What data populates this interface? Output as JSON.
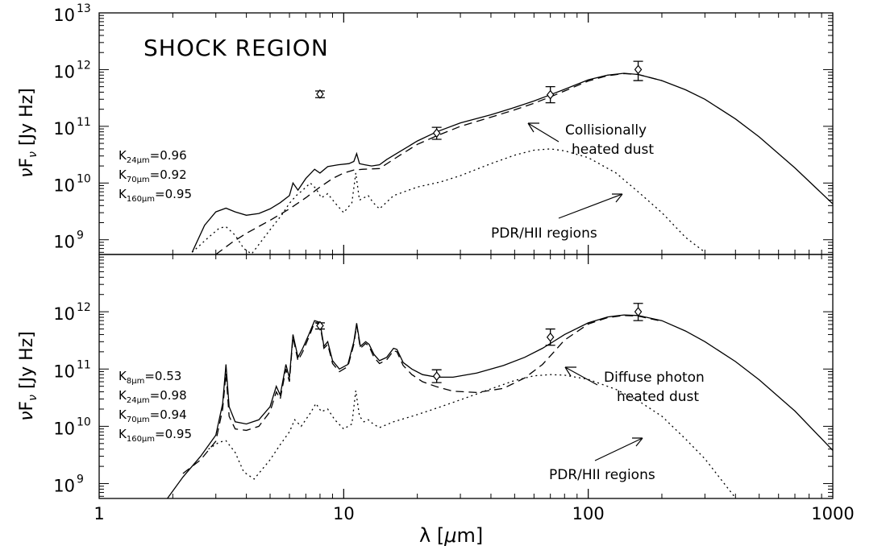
{
  "chart_data": [
    {
      "type": "line",
      "panel": "top",
      "title": "SHOCK REGION",
      "xlabel": "",
      "ylabel": "νF_ν [Jy Hz]",
      "xscale": "log",
      "yscale": "log",
      "xlim": [
        1,
        1000
      ],
      "ylim": [
        550000000.0,
        10000000000000.0
      ],
      "y_tick_labels": [
        {
          "label": "10",
          "exp": "13",
          "value": 10000000000000.0
        },
        {
          "label": "10",
          "exp": "12",
          "value": 1000000000000.0
        },
        {
          "label": "10",
          "exp": "11",
          "value": 100000000000.0
        },
        {
          "label": "10",
          "exp": "10",
          "value": 10000000000.0
        },
        {
          "label": "10",
          "exp": "9",
          "value": 1000000000.0
        }
      ],
      "k_factors": [
        {
          "sub": "24μm",
          "value": "0.96"
        },
        {
          "sub": "70μm",
          "value": "0.92"
        },
        {
          "sub": "160μm",
          "value": "0.95"
        }
      ],
      "annotations": [
        {
          "lines": [
            "Collisionally",
            "heated dust"
          ]
        },
        {
          "lines": [
            "PDR/HII regions"
          ]
        }
      ],
      "observed_points": [
        {
          "x": 8.0,
          "y": 370000000000.0,
          "yerr_low": 320000000000.0,
          "yerr_high": 420000000000.0
        },
        {
          "x": 24,
          "y": 76000000000.0,
          "yerr_low": 59000000000.0,
          "yerr_high": 96000000000.0
        },
        {
          "x": 70,
          "y": 360000000000.0,
          "yerr_low": 260000000000.0,
          "yerr_high": 500000000000.0
        },
        {
          "x": 160,
          "y": 1000000000000.0,
          "yerr_low": 640000000000.0,
          "yerr_high": 1400000000000.0
        }
      ],
      "series": [
        {
          "style": "solid",
          "x": [
            2.4,
            2.7,
            3.0,
            3.3,
            3.6,
            4.0,
            4.5,
            5.0,
            5.5,
            6.0,
            6.2,
            6.5,
            7.0,
            7.6,
            8.0,
            8.6,
            9.5,
            10.5,
            11.0,
            11.3,
            11.6,
            12.2,
            13.0,
            14.0,
            15.0,
            17.0,
            20,
            24,
            30,
            40,
            50,
            60,
            70,
            80,
            100,
            120,
            140,
            160,
            200,
            250,
            300,
            400,
            500,
            700,
            1000
          ],
          "y": [
            600000000.0,
            1800000000.0,
            3100000000.0,
            3600000000.0,
            3100000000.0,
            2700000000.0,
            2900000000.0,
            3500000000.0,
            4500000000.0,
            6000000000.0,
            10000000000.0,
            7500000000.0,
            12000000000.0,
            17500000000.0,
            15000000000.0,
            19500000000.0,
            21000000000.0,
            22000000000.0,
            24000000000.0,
            33000000000.0,
            22000000000.0,
            21000000000.0,
            20000000000.0,
            21000000000.0,
            26000000000.0,
            36000000000.0,
            55000000000.0,
            80000000000.0,
            115000000000.0,
            160000000000.0,
            215000000000.0,
            280000000000.0,
            360000000000.0,
            450000000000.0,
            660000000000.0,
            800000000000.0,
            860000000000.0,
            820000000000.0,
            640000000000.0,
            440000000000.0,
            300000000000.0,
            135000000000.0,
            65000000000.0,
            18500000000.0,
            4300000000.0
          ]
        },
        {
          "style": "dashed",
          "x": [
            3.0,
            3.5,
            4.0,
            5.0,
            6.0,
            7.0,
            8.0,
            9.0,
            10.0,
            11.0,
            12.0,
            14.0,
            17,
            20,
            24,
            30,
            40,
            50,
            60,
            70,
            80,
            100,
            120,
            140,
            160,
            200
          ],
          "y": [
            550000000.0,
            900000000.0,
            1300000000.0,
            2200000000.0,
            3500000000.0,
            5500000000.0,
            8500000000.0,
            12000000000.0,
            15000000000.0,
            17000000000.0,
            17500000000.0,
            18000000000.0,
            31000000000.0,
            48000000000.0,
            68000000000.0,
            100000000000.0,
            145000000000.0,
            195000000000.0,
            255000000000.0,
            330000000000.0,
            420000000000.0,
            630000000000.0,
            780000000000.0,
            850000000000.0,
            820000000000.0,
            640000000000.0
          ]
        },
        {
          "style": "dotted",
          "x": [
            2.4,
            2.8,
            3.1,
            3.3,
            3.6,
            3.9,
            4.2,
            5.0,
            5.6,
            6.0,
            6.4,
            6.8,
            7.3,
            7.7,
            8.1,
            8.6,
            9.2,
            10.0,
            10.8,
            11.2,
            11.6,
            12.1,
            12.6,
            13.2,
            14.0,
            16,
            20,
            25,
            30,
            40,
            50,
            60,
            70,
            80,
            100,
            130,
            160,
            200,
            250,
            300
          ],
          "y": [
            600000000.0,
            1100000000.0,
            1600000000.0,
            1700000000.0,
            1200000000.0,
            700000000.0,
            560000000.0,
            1500000000.0,
            2800000000.0,
            4400000000.0,
            6000000000.0,
            7500000000.0,
            10000000000.0,
            8000000000.0,
            5500000000.0,
            6500000000.0,
            4500000000.0,
            3000000000.0,
            4500000000.0,
            15000000000.0,
            5000000000.0,
            5500000000.0,
            6000000000.0,
            4500000000.0,
            3500000000.0,
            6000000000.0,
            8500000000.0,
            10500000000.0,
            13500000000.0,
            22000000000.0,
            31000000000.0,
            38000000000.0,
            40000000000.0,
            37000000000.0,
            28000000000.0,
            15000000000.0,
            7000000000.0,
            3000000000.0,
            1100000000.0,
            600000000.0
          ]
        }
      ]
    },
    {
      "type": "line",
      "panel": "bottom",
      "title": "",
      "xlabel": "λ [μm]",
      "ylabel": "νF_ν [Jy Hz]",
      "xscale": "log",
      "yscale": "log",
      "xlim": [
        1,
        1000
      ],
      "ylim": [
        550000000.0,
        10000000000000.0
      ],
      "x_tick_labels": [
        {
          "label": "1",
          "value": 1
        },
        {
          "label": "10",
          "value": 10
        },
        {
          "label": "100",
          "value": 100
        },
        {
          "label": "1000",
          "value": 1000
        }
      ],
      "y_tick_labels": [
        {
          "label": "10",
          "exp": "12",
          "value": 1000000000000.0
        },
        {
          "label": "10",
          "exp": "11",
          "value": 100000000000.0
        },
        {
          "label": "10",
          "exp": "10",
          "value": 10000000000.0
        },
        {
          "label": "10",
          "exp": "9",
          "value": 1000000000.0
        }
      ],
      "k_factors": [
        {
          "sub": "8μm",
          "value": "0.53"
        },
        {
          "sub": "24μm",
          "value": "0.98"
        },
        {
          "sub": "70μm",
          "value": "0.94"
        },
        {
          "sub": "160μm",
          "value": "0.95"
        }
      ],
      "annotations": [
        {
          "lines": [
            "Diffuse photon",
            "heated dust"
          ]
        },
        {
          "lines": [
            "PDR/HII regions"
          ]
        }
      ],
      "observed_points": [
        {
          "x": 8.0,
          "y": 570000000000.0,
          "yerr_low": 500000000000.0,
          "yerr_high": 640000000000.0
        },
        {
          "x": 24,
          "y": 75000000000.0,
          "yerr_low": 58000000000.0,
          "yerr_high": 97000000000.0
        },
        {
          "x": 70,
          "y": 360000000000.0,
          "yerr_low": 260000000000.0,
          "yerr_high": 500000000000.0
        },
        {
          "x": 160,
          "y": 1000000000000.0,
          "yerr_low": 700000000000.0,
          "yerr_high": 1400000000000.0
        }
      ],
      "series": [
        {
          "style": "solid",
          "x": [
            1.9,
            2.2,
            2.6,
            3.0,
            3.2,
            3.3,
            3.4,
            3.6,
            4.0,
            4.5,
            5.0,
            5.3,
            5.5,
            5.8,
            6.0,
            6.2,
            6.5,
            6.8,
            7.2,
            7.6,
            8.0,
            8.3,
            8.6,
            9.0,
            9.6,
            10.4,
            11.0,
            11.3,
            11.7,
            12.3,
            12.7,
            13.3,
            14.0,
            15.0,
            16.0,
            16.5,
            17.5,
            19,
            21,
            24,
            28,
            35,
            45,
            55,
            65,
            70,
            80,
            100,
            120,
            140,
            160,
            200,
            250,
            300,
            400,
            500,
            700,
            1000
          ],
          "y": [
            550000000.0,
            1300000000.0,
            3000000000.0,
            7000000000.0,
            25000000000.0,
            120000000000.0,
            22000000000.0,
            12000000000.0,
            11000000000.0,
            13000000000.0,
            22000000000.0,
            50000000000.0,
            35000000000.0,
            120000000000.0,
            70000000000.0,
            400000000000.0,
            160000000000.0,
            230000000000.0,
            400000000000.0,
            700000000000.0,
            650000000000.0,
            250000000000.0,
            300000000000.0,
            140000000000.0,
            100000000000.0,
            120000000000.0,
            300000000000.0,
            630000000000.0,
            250000000000.0,
            300000000000.0,
            270000000000.0,
            180000000000.0,
            140000000000.0,
            160000000000.0,
            230000000000.0,
            220000000000.0,
            130000000000.0,
            100000000000.0,
            80000000000.0,
            72000000000.0,
            72000000000.0,
            85000000000.0,
            115000000000.0,
            160000000000.0,
            230000000000.0,
            280000000000.0,
            400000000000.0,
            640000000000.0,
            810000000000.0,
            880000000000.0,
            860000000000.0,
            700000000000.0,
            460000000000.0,
            300000000000.0,
            135000000000.0,
            65000000000.0,
            18500000000.0,
            3800000000.0
          ]
        },
        {
          "style": "dashed",
          "x": [
            2.2,
            2.6,
            3.0,
            3.2,
            3.3,
            3.4,
            3.6,
            4.0,
            4.5,
            5.0,
            5.3,
            5.5,
            5.8,
            6.0,
            6.2,
            6.5,
            6.8,
            7.2,
            7.6,
            8.0,
            8.3,
            8.6,
            9.0,
            9.6,
            10.4,
            11.0,
            11.3,
            11.7,
            12.3,
            12.7,
            13.3,
            14.0,
            15.0,
            16.0,
            16.5,
            17.5,
            19,
            21,
            24,
            28,
            35,
            45,
            55,
            65,
            70,
            80,
            100,
            120,
            140,
            160,
            200
          ],
          "y": [
            1500000000.0,
            2600000000.0,
            5500000000.0,
            20000000000.0,
            85000000000.0,
            15000000000.0,
            9000000000.0,
            8500000000.0,
            10000000000.0,
            18000000000.0,
            40000000000.0,
            30000000000.0,
            100000000000.0,
            60000000000.0,
            360000000000.0,
            140000000000.0,
            200000000000.0,
            360000000000.0,
            650000000000.0,
            600000000000.0,
            230000000000.0,
            270000000000.0,
            125000000000.0,
            90000000000.0,
            110000000000.0,
            270000000000.0,
            580000000000.0,
            230000000000.0,
            280000000000.0,
            250000000000.0,
            160000000000.0,
            125000000000.0,
            145000000000.0,
            210000000000.0,
            200000000000.0,
            115000000000.0,
            80000000000.0,
            60000000000.0,
            49000000000.0,
            41000000000.0,
            39000000000.0,
            46000000000.0,
            70000000000.0,
            120000000000.0,
            170000000000.0,
            320000000000.0,
            610000000000.0,
            790000000000.0,
            860000000000.0,
            840000000000.0,
            680000000000.0
          ]
        },
        {
          "style": "dotted",
          "x": [
            2.8,
            3.1,
            3.3,
            3.6,
            3.9,
            4.3,
            5.0,
            5.5,
            6.0,
            6.3,
            6.7,
            7.3,
            7.7,
            8.1,
            8.6,
            9.2,
            10.0,
            10.8,
            11.2,
            11.6,
            12.1,
            12.6,
            13.2,
            14.0,
            16,
            20,
            25,
            30,
            40,
            50,
            60,
            70,
            80,
            100,
            130,
            160,
            200,
            250,
            300,
            400
          ],
          "y": [
            4000000000.0,
            5300000000.0,
            5600000000.0,
            3500000000.0,
            1600000000.0,
            1200000000.0,
            2600000000.0,
            4800000000.0,
            8000000000.0,
            13000000000.0,
            10000000000.0,
            17000000000.0,
            25000000000.0,
            18000000000.0,
            20000000000.0,
            13000000000.0,
            9000000000.0,
            11000000000.0,
            42000000000.0,
            15000000000.0,
            12000000000.0,
            13000000000.0,
            11000000000.0,
            9500000000.0,
            12000000000.0,
            16000000000.0,
            22000000000.0,
            29000000000.0,
            45000000000.0,
            63000000000.0,
            76000000000.0,
            80000000000.0,
            78000000000.0,
            66000000000.0,
            44000000000.0,
            28000000000.0,
            15000000000.0,
            6000000000.0,
            2700000000.0,
            560000000.0
          ]
        }
      ]
    }
  ]
}
